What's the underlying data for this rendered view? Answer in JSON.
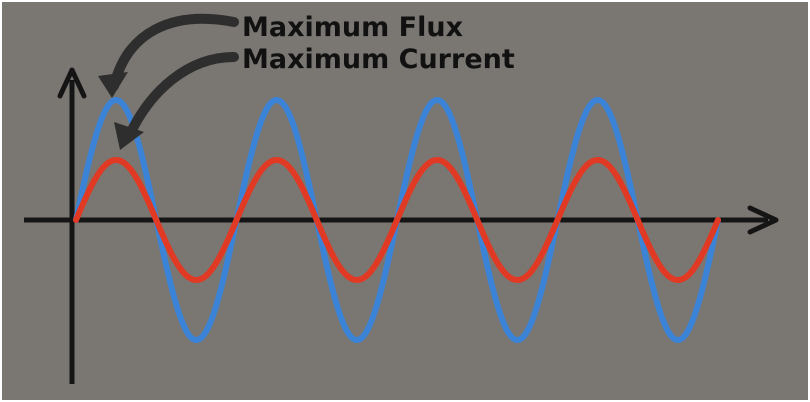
{
  "annotations": {
    "flux_label": "Maximum Flux",
    "current_label": "Maximum Current"
  },
  "colors": {
    "background": "#7a7672",
    "axis": "#151515",
    "flux_curve": "#3b83d6",
    "current_curve": "#e03a24",
    "arrow": "#2e2e2e"
  },
  "waves": {
    "cycles": 4,
    "flux_relative_amplitude": 1.0,
    "current_relative_amplitude": 0.5
  }
}
